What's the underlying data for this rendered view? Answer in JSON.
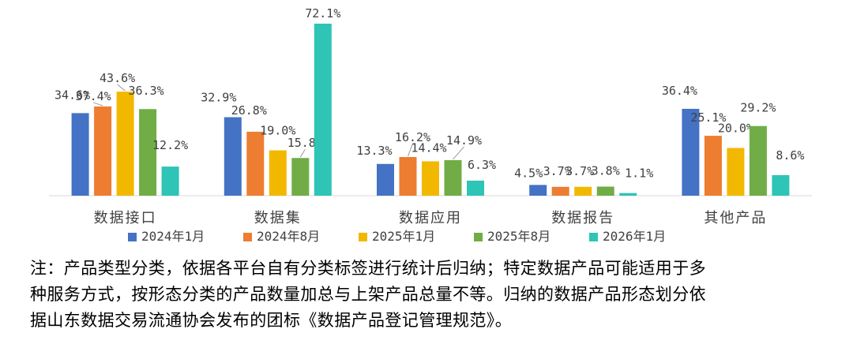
{
  "chart_data": {
    "type": "bar",
    "categories": [
      "数据接口",
      "数据集",
      "数据应用",
      "数据报告",
      "其他产品"
    ],
    "series": [
      {
        "name": "2024年1月",
        "color": "#4472C4",
        "values": [
          34.6,
          32.9,
          13.3,
          4.5,
          36.4
        ]
      },
      {
        "name": "2024年8月",
        "color": "#ED7D31",
        "values": [
          37.4,
          26.8,
          16.2,
          3.7,
          25.1
        ]
      },
      {
        "name": "2025年1月",
        "color": "#F2B800",
        "values": [
          43.6,
          19.0,
          14.4,
          3.7,
          20.0
        ]
      },
      {
        "name": "2025年8月",
        "color": "#70AD47",
        "values": [
          36.3,
          15.8,
          14.9,
          3.8,
          29.2
        ]
      },
      {
        "name": "2026年1月",
        "color": "#2EC4B6",
        "values": [
          12.2,
          72.1,
          6.3,
          1.1,
          8.6
        ]
      }
    ],
    "value_suffix": "%",
    "ylim": [
      0,
      72.1
    ],
    "grid": false,
    "legend_position": "bottom"
  },
  "note": {
    "lines": [
      "注：产品类型分类，依据各平台自有分类标签进行统计后归纳；特定数据产品可能适用于多",
      "种服务方式，按形态分类的产品数量加总与上架产品总量不等。归纳的数据产品形态划分依",
      "据山东数据交易流通协会发布的团标《数据产品登记管理规范》。"
    ]
  }
}
